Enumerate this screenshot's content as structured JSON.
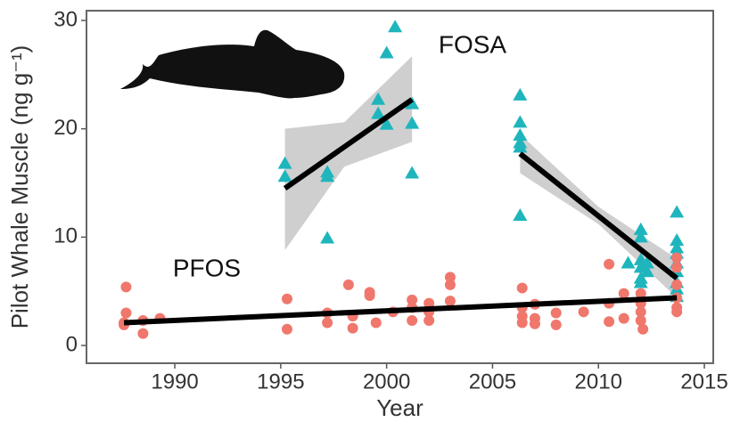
{
  "chart_data": {
    "type": "scatter",
    "x_label": "Year",
    "y_label": "Pilot Whale Muscle (ng g⁻¹)",
    "xlim": [
      1985.83,
      2015.42
    ],
    "ylim": [
      -1.64,
      30.9
    ],
    "xticks": [
      1990,
      1995,
      2000,
      2005,
      2010,
      2015
    ],
    "yticks": [
      0,
      10,
      20,
      30
    ],
    "grid": false,
    "series": [
      {
        "name": "FOSA",
        "color": "#1fb5bd",
        "marker": "triangle",
        "x": [
          1995.2,
          1995.2,
          1997.2,
          1997.2,
          1997.2,
          1999.6,
          1999.6,
          2000.0,
          2000.0,
          2000.4,
          2001.2,
          2001.2,
          2001.2,
          2006.3,
          2006.3,
          2006.3,
          2006.3,
          2006.3,
          2006.3,
          2011.4,
          2012.0,
          2012.0,
          2012.0,
          2012.0,
          2012.0,
          2012.0,
          2012.3,
          2012.3,
          2013.7,
          2013.7,
          2013.7,
          2013.7,
          2013.7,
          2013.7,
          2013.7,
          2013.7,
          2013.7
        ],
        "values": [
          16.8,
          15.6,
          16.0,
          15.6,
          9.9,
          22.7,
          21.4,
          27.0,
          20.4,
          29.4,
          22.3,
          20.5,
          15.9,
          23.1,
          20.6,
          19.4,
          18.7,
          18.3,
          12.0,
          7.6,
          10.7,
          10.0,
          7.9,
          7.2,
          5.8,
          6.2,
          7.6,
          6.8,
          12.3,
          9.7,
          9.0,
          8.5,
          7.6,
          6.8,
          5.8,
          5.2,
          4.5
        ],
        "fits": [
          {
            "x": [
              1995.2,
              2001.2
            ],
            "values": [
              14.5,
              22.7
            ],
            "band": {
              "x": [
                1995.2,
                1998.0,
                2001.2
              ],
              "lower": [
                8.8,
                16.5,
                18.8
              ],
              "upper": [
                20.0,
                20.6,
                26.7
              ]
            }
          },
          {
            "x": [
              2006.3,
              2013.7
            ],
            "values": [
              17.7,
              6.2
            ],
            "band": {
              "x": [
                2006.3,
                2010.0,
                2013.7
              ],
              "lower": [
                15.9,
                11.2,
                4.4
              ],
              "upper": [
                19.5,
                12.8,
                8.0
              ]
            }
          }
        ]
      },
      {
        "name": "PFOS",
        "color": "#f0776c",
        "marker": "circle",
        "x": [
          1987.7,
          1987.7,
          1987.6,
          1987.6,
          1988.5,
          1988.5,
          1989.3,
          1995.3,
          1995.3,
          1997.2,
          1997.2,
          1998.2,
          1998.4,
          1998.4,
          1999.2,
          1999.2,
          1999.5,
          2000.3,
          2001.2,
          2001.2,
          2001.2,
          2002.0,
          2002.0,
          2002.0,
          2003.0,
          2003.0,
          2003.0,
          2006.4,
          2006.4,
          2006.4,
          2006.4,
          2007.0,
          2007.0,
          2007.0,
          2008.0,
          2008.0,
          2009.3,
          2010.5,
          2010.5,
          2010.5,
          2011.2,
          2011.2,
          2012.0,
          2012.0,
          2012.0,
          2012.0,
          2012.1,
          2013.7,
          2013.7,
          2013.7,
          2013.7,
          2013.7,
          2013.7
        ],
        "values": [
          5.4,
          3.0,
          2.1,
          1.9,
          2.3,
          1.1,
          2.5,
          4.3,
          1.5,
          3.0,
          2.1,
          5.6,
          2.7,
          1.6,
          4.9,
          4.6,
          2.1,
          3.1,
          4.2,
          3.5,
          2.3,
          3.9,
          3.1,
          2.3,
          6.3,
          5.6,
          4.1,
          5.3,
          3.5,
          2.7,
          2.1,
          3.8,
          2.5,
          2.0,
          3.0,
          1.9,
          3.1,
          7.5,
          3.9,
          2.2,
          4.8,
          2.5,
          4.8,
          3.9,
          3.1,
          2.3,
          1.5,
          8.1,
          7.2,
          5.6,
          4.4,
          3.5,
          3.1
        ],
        "fits": [
          {
            "x": [
              1987.6,
              2013.7
            ],
            "values": [
              2.1,
              4.4
            ]
          }
        ]
      }
    ]
  }
}
